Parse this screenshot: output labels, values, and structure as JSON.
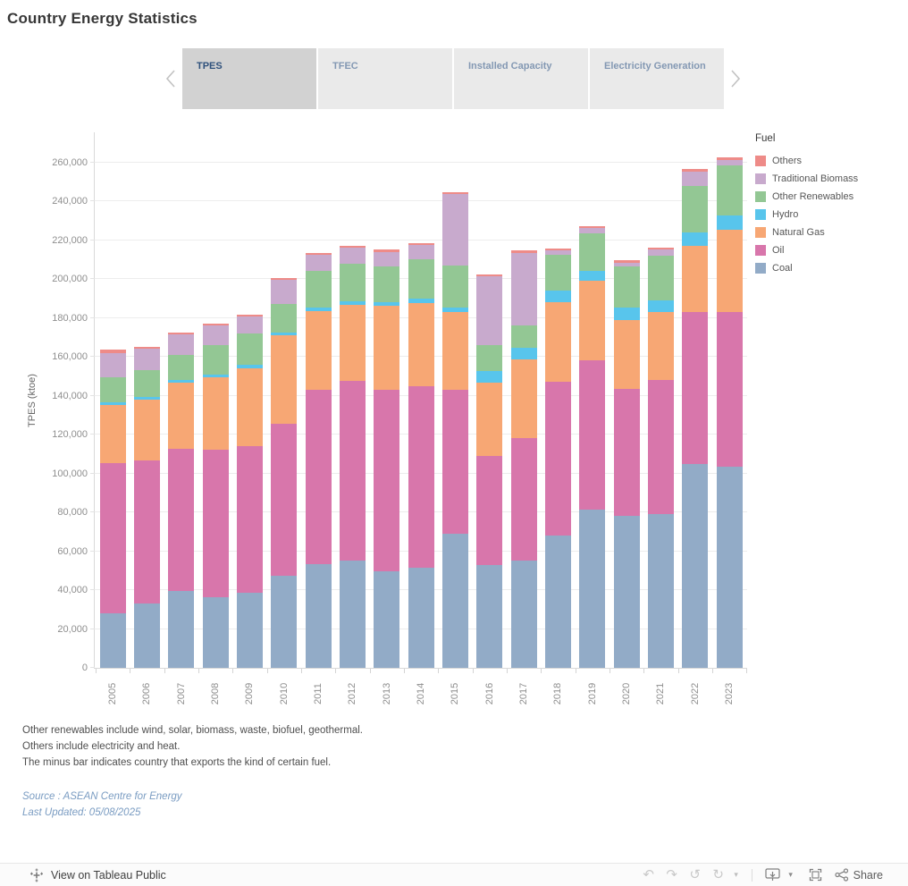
{
  "title": "Country Energy Statistics",
  "tabs": {
    "items": [
      {
        "label": "TPES",
        "active": true
      },
      {
        "label": "TFEC",
        "active": false
      },
      {
        "label": "Installed Capacity",
        "active": false
      },
      {
        "label": "Electricity Generation",
        "active": false
      }
    ]
  },
  "chart_data": {
    "type": "bar",
    "stacked": true,
    "title": "",
    "xlabel": "",
    "ylabel": "TPES (ktoe)",
    "legend_title": "Fuel",
    "legend_position": "right",
    "grid": true,
    "ylim": [
      0,
      276000
    ],
    "ytick_step": 20000,
    "unit": "ktoe",
    "categories": [
      "2005",
      "2006",
      "2007",
      "2008",
      "2009",
      "2010",
      "2011",
      "2012",
      "2013",
      "2014",
      "2015",
      "2016",
      "2017",
      "2018",
      "2019",
      "2020",
      "2021",
      "2022",
      "2023"
    ],
    "series": [
      {
        "name": "Coal",
        "color": "#92abc7",
        "values": [
          28000,
          33000,
          39500,
          36500,
          38500,
          47500,
          53500,
          55000,
          49500,
          51500,
          69000,
          53000,
          55000,
          68000,
          81500,
          78000,
          79000,
          105000,
          103500
        ]
      },
      {
        "name": "Oil",
        "color": "#d876ab",
        "values": [
          77500,
          73500,
          73000,
          75500,
          75500,
          78000,
          89500,
          92500,
          93500,
          93500,
          74000,
          56000,
          63000,
          79000,
          76500,
          65500,
          69000,
          78000,
          79500
        ]
      },
      {
        "name": "Natural Gas",
        "color": "#f7a774",
        "values": [
          29500,
          31500,
          34000,
          37500,
          40000,
          45500,
          40500,
          39000,
          43000,
          42500,
          40000,
          37500,
          40500,
          41000,
          41000,
          35500,
          35000,
          34000,
          42500
        ]
      },
      {
        "name": "Hydro",
        "color": "#58c5ec",
        "values": [
          1500,
          1500,
          1500,
          1500,
          2000,
          1500,
          2000,
          2000,
          2000,
          2200,
          2500,
          6000,
          6000,
          6000,
          5000,
          6500,
          6000,
          7000,
          7000
        ]
      },
      {
        "name": "Other Renewables",
        "color": "#93c794",
        "values": [
          13000,
          13500,
          13000,
          15000,
          16000,
          14500,
          18500,
          19500,
          18500,
          20300,
          21500,
          13500,
          11500,
          18500,
          19500,
          21000,
          23000,
          24000,
          26000
        ]
      },
      {
        "name": "Traditional Biomass",
        "color": "#c8aacd",
        "values": [
          12500,
          11000,
          10500,
          10000,
          8500,
          12500,
          8500,
          8000,
          7500,
          7500,
          36500,
          35500,
          37500,
          2000,
          2500,
          2000,
          3000,
          7000,
          2500
        ]
      },
      {
        "name": "Others",
        "color": "#ee8b88",
        "values": [
          1500,
          1000,
          1000,
          1000,
          1000,
          1000,
          1000,
          1000,
          1000,
          1000,
          1000,
          1000,
          1000,
          1000,
          1000,
          1000,
          1000,
          1500,
          1500
        ]
      }
    ]
  },
  "notes": [
    "Other renewables include wind, solar, biomass, waste, biofuel, geothermal.",
    "Others include electricity and heat.",
    "The minus bar indicates country that exports the kind of certain fuel."
  ],
  "source": {
    "line1": "Source : ASEAN Centre for Energy",
    "line2": "Last Updated: 05/08/2025"
  },
  "toolbar": {
    "view_label": "View on Tableau Public",
    "share_label": "Share",
    "icons": [
      "tableau-logo",
      "undo",
      "redo",
      "reset",
      "refresh",
      "caret-down",
      "download-device",
      "fullscreen",
      "share"
    ]
  }
}
